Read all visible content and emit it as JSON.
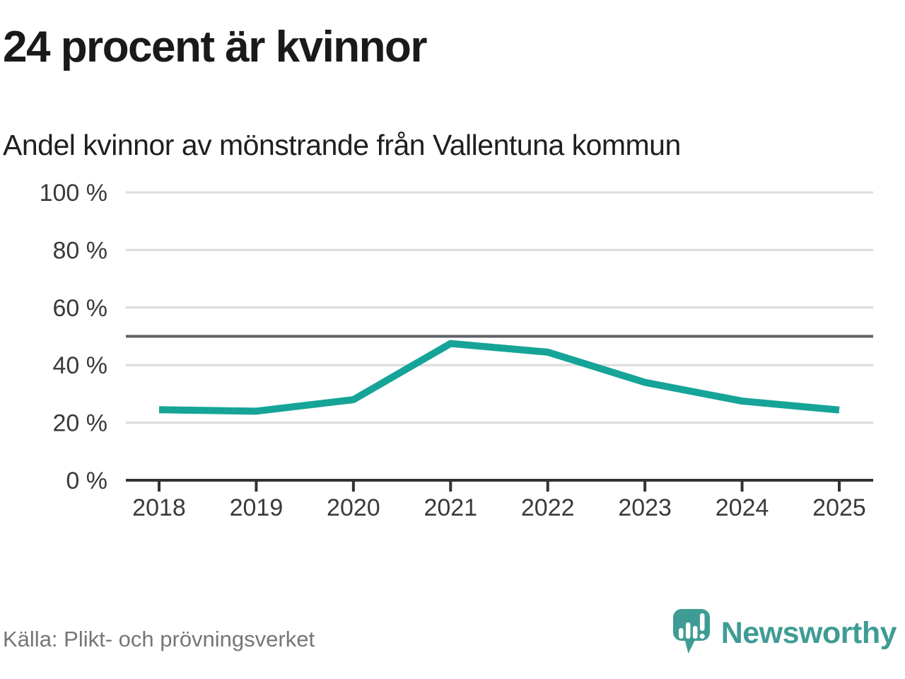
{
  "header": {
    "title": "24 procent är kvinnor",
    "subtitle": "Andel kvinnor av mönstrande från Vallentuna kommun"
  },
  "chart_data": {
    "type": "line",
    "title": "24 procent är kvinnor",
    "subtitle": "Andel kvinnor av mönstrande från Vallentuna kommun",
    "x": [
      "2018",
      "2019",
      "2020",
      "2021",
      "2022",
      "2023",
      "2024",
      "2025"
    ],
    "series": [
      {
        "name": "Andel kvinnor av mönstrande",
        "color": "#16a498",
        "values": [
          24.5,
          24,
          28,
          47.5,
          44.5,
          34,
          27.5,
          24.4
        ]
      }
    ],
    "ylim": [
      0,
      100
    ],
    "yticks": [
      0,
      20,
      40,
      60,
      80,
      100
    ],
    "ytick_labels": [
      "0 %",
      "20 %",
      "40 %",
      "60 %",
      "80 %",
      "100 %"
    ],
    "reference_line": {
      "value": 50,
      "color": "#5f6368"
    },
    "grid": "horizontal",
    "legend": "none"
  },
  "footer": {
    "source": "Källa: Plikt- och prövningsverket",
    "brand": "Newsworthy"
  },
  "palette": {
    "line": "#16a498",
    "grid": "#dcdcdc",
    "axis": "#333333",
    "reference": "#5f6368",
    "tick_label": "#3a3a3a",
    "brand_teal": "#3f9c95",
    "source_gray": "#767676",
    "background": "#ffffff"
  }
}
